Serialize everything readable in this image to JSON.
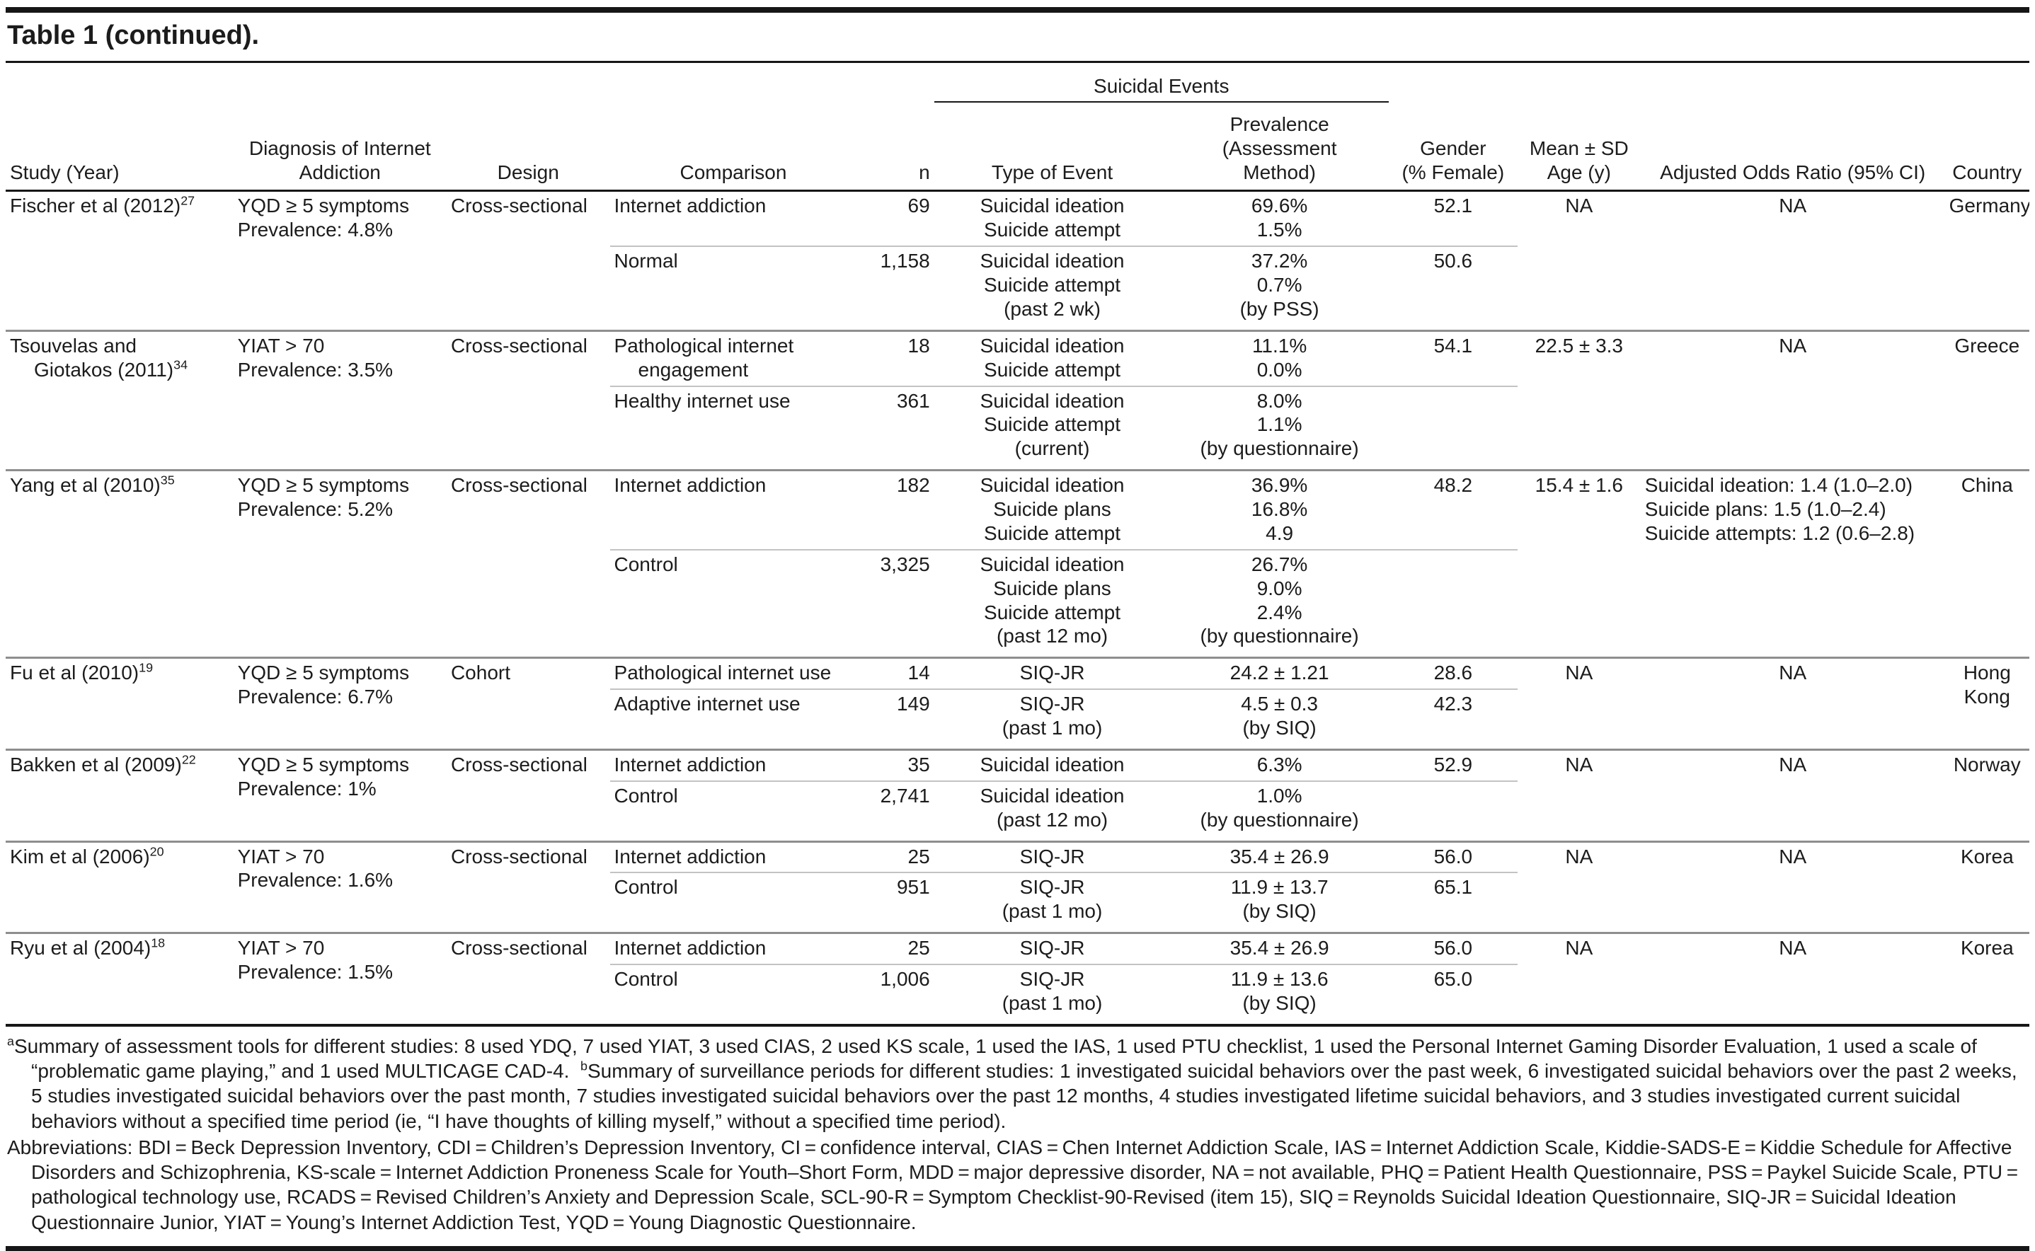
{
  "title": "Table 1 (continued).",
  "header": {
    "study": "Study (Year)",
    "diagnosis": "Diagnosis of Internet\nAddiction",
    "design": "Design",
    "comparison": "Comparison",
    "n": "n",
    "suicidal_events": "Suicidal Events",
    "type_of_event": "Type of Event",
    "prevalence": "Prevalence\n(Assessment\nMethod)",
    "gender": "Gender\n(% Female)",
    "age": "Mean ± SD\nAge (y)",
    "aor": "Adjusted Odds Ratio (95% CI)",
    "country": "Country"
  },
  "studies": [
    {
      "study": "Fischer et al (2012)",
      "ref": "27",
      "diagnosis": "YQD ≥ 5 symptoms\nPrevalence: 4.8%",
      "design": "Cross-sectional",
      "age": "NA",
      "aor": "NA",
      "country": "Germany",
      "rows": [
        {
          "comparison": "Internet addiction",
          "n": "69",
          "type": "Suicidal ideation\nSuicide attempt",
          "prevalence": "69.6%\n1.5%",
          "gender": "52.1"
        },
        {
          "comparison": "Normal",
          "n": "1,158",
          "type": "Suicidal ideation\nSuicide attempt\n(past 2 wk)",
          "prevalence": "37.2%\n0.7%\n(by PSS)",
          "gender": "50.6"
        }
      ]
    },
    {
      "study": "Tsouvelas and\nGiotakos (2011)",
      "ref": "34",
      "diagnosis": "YIAT > 70\nPrevalence: 3.5%",
      "design": "Cross-sectional",
      "age": "22.5 ± 3.3",
      "aor": "NA",
      "country": "Greece",
      "rows": [
        {
          "comparison": "Pathological internet engagement",
          "n": "18",
          "type": "Suicidal ideation\nSuicide attempt",
          "prevalence": "11.1%\n0.0%",
          "gender": "54.1"
        },
        {
          "comparison": "Healthy internet use",
          "n": "361",
          "type": "Suicidal ideation\nSuicide attempt\n(current)",
          "prevalence": "8.0%\n1.1%\n(by questionnaire)",
          "gender": ""
        }
      ]
    },
    {
      "study": "Yang et al (2010)",
      "ref": "35",
      "diagnosis": "YQD ≥ 5 symptoms\nPrevalence: 5.2%",
      "design": "Cross-sectional",
      "age": "15.4 ± 1.6",
      "aor": "Suicidal ideation: 1.4 (1.0–2.0)\nSuicide plans: 1.5 (1.0–2.4)\nSuicide attempts: 1.2 (0.6–2.8)",
      "country": "China",
      "rows": [
        {
          "comparison": "Internet addiction",
          "n": "182",
          "type": "Suicidal ideation\nSuicide plans\nSuicide attempt",
          "prevalence": "36.9%\n16.8%\n4.9",
          "gender": "48.2"
        },
        {
          "comparison": "Control",
          "n": "3,325",
          "type": "Suicidal ideation\nSuicide plans\nSuicide attempt\n(past 12 mo)",
          "prevalence": "26.7%\n9.0%\n2.4%\n(by questionnaire)",
          "gender": ""
        }
      ]
    },
    {
      "study": "Fu et al (2010)",
      "ref": "19",
      "diagnosis": "YQD ≥ 5 symptoms\nPrevalence: 6.7%",
      "design": "Cohort",
      "age": "NA",
      "aor": "NA",
      "country": "Hong\nKong",
      "rows": [
        {
          "comparison": "Pathological internet use",
          "n": "14",
          "type": "SIQ-JR",
          "prevalence": "24.2 ± 1.21",
          "gender": "28.6"
        },
        {
          "comparison": "Adaptive internet use",
          "n": "149",
          "type": "SIQ-JR\n(past 1 mo)",
          "prevalence": "4.5 ± 0.3\n(by SIQ)",
          "gender": "42.3"
        }
      ]
    },
    {
      "study": "Bakken et al (2009)",
      "ref": "22",
      "diagnosis": "YQD ≥ 5 symptoms\nPrevalence: 1%",
      "design": "Cross-sectional",
      "age": "NA",
      "aor": "NA",
      "country": "Norway",
      "rows": [
        {
          "comparison": "Internet addiction",
          "n": "35",
          "type": "Suicidal ideation",
          "prevalence": "6.3%",
          "gender": "52.9"
        },
        {
          "comparison": "Control",
          "n": "2,741",
          "type": "Suicidal ideation\n(past 12 mo)",
          "prevalence": "1.0%\n(by questionnaire)",
          "gender": ""
        }
      ]
    },
    {
      "study": "Kim et al (2006)",
      "ref": "20",
      "diagnosis": "YIAT > 70\nPrevalence: 1.6%",
      "design": "Cross-sectional",
      "age": "NA",
      "aor": "NA",
      "country": "Korea",
      "rows": [
        {
          "comparison": "Internet addiction",
          "n": "25",
          "type": "SIQ-JR",
          "prevalence": "35.4 ± 26.9",
          "gender": "56.0"
        },
        {
          "comparison": "Control",
          "n": "951",
          "type": "SIQ-JR\n(past 1 mo)",
          "prevalence": "11.9 ± 13.7\n(by SIQ)",
          "gender": "65.1"
        }
      ]
    },
    {
      "study": "Ryu et al (2004)",
      "ref": "18",
      "diagnosis": "YIAT > 70\nPrevalence: 1.5%",
      "design": "Cross-sectional",
      "age": "NA",
      "aor": "NA",
      "country": "Korea",
      "rows": [
        {
          "comparison": "Internet addiction",
          "n": "25",
          "type": "SIQ-JR",
          "prevalence": "35.4 ± 26.9",
          "gender": "56.0"
        },
        {
          "comparison": "Control",
          "n": "1,006",
          "type": "SIQ-JR\n(past 1 mo)",
          "prevalence": "11.9 ± 13.6\n(by SIQ)",
          "gender": "65.0"
        }
      ]
    }
  ],
  "footnotes": {
    "a_marker": "a",
    "a_text": "Summary of assessment tools for different studies: 8 used YDQ, 7 used YIAT, 3 used CIAS, 2 used KS scale, 1 used the IAS, 1 used PTU checklist, 1 used the Personal Internet Gaming Disorder Evaluation, 1 used a scale of “problematic game playing,” and 1 used MULTICAGE CAD-4.  ",
    "b_marker": "b",
    "b_text": "Summary of surveillance periods for different studies: 1 investigated suicidal behaviors over the past week, 6 investigated suicidal behaviors over the past 2 weeks, 5 studies investigated suicidal behaviors over the past month, 7 studies investigated suicidal behaviors over the past 12 months, 4 studies investigated lifetime suicidal behaviors, and 3 studies investigated current suicidal behaviors without a specified time period (ie, “I have thoughts of killing myself,” without a specified time period).",
    "abbreviations": "Abbreviations: BDI = Beck Depression Inventory, CDI = Children’s Depression Inventory, CI = confidence interval, CIAS = Chen Internet Addiction Scale, IAS = Internet Addiction Scale, Kiddie-SADS-E = Kiddie Schedule for Affective Disorders and Schizophrenia, KS-scale = Internet Addiction Proneness Scale for Youth–Short Form, MDD = major depressive disorder, NA = not available, PHQ = Patient Health Questionnaire, PSS = Paykel Suicide Scale, PTU = pathological technology use, RCADS = Revised Children’s Anxiety and Depression Scale, SCL-90-R = Symptom Checklist-90-Revised (item 15), SIQ = Reynolds Suicidal Ideation Questionnaire, SIQ-JR = Suicidal Ideation Questionnaire Junior, YIAT = Young’s Internet Addiction Test, YQD = Young Diagnostic Questionnaire."
  }
}
